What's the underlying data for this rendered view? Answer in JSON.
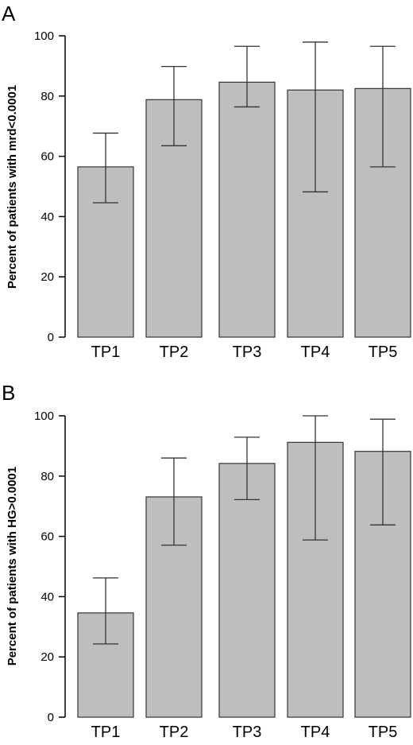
{
  "chart_data": [
    {
      "panel": "A",
      "type": "bar",
      "categories": [
        "TP1",
        "TP2",
        "TP3",
        "TP4",
        "TP5"
      ],
      "values": [
        56.5,
        78.8,
        84.6,
        82.0,
        82.5
      ],
      "error_low": [
        44.6,
        63.5,
        76.4,
        48.2,
        56.5
      ],
      "error_high": [
        67.7,
        89.8,
        96.5,
        97.9,
        96.5
      ],
      "ylabel": "Percent of patients with mrd<0.0001",
      "ylim": [
        0,
        100
      ],
      "yticks": [
        0,
        20,
        40,
        60,
        80,
        100
      ],
      "grid": false,
      "bar_color": "#bebebe"
    },
    {
      "panel": "B",
      "type": "bar",
      "categories": [
        "TP1",
        "TP2",
        "TP3",
        "TP4",
        "TP5"
      ],
      "values": [
        34.6,
        73.1,
        84.2,
        91.2,
        88.2
      ],
      "error_low": [
        24.3,
        57.1,
        72.2,
        58.8,
        63.8
      ],
      "error_high": [
        46.2,
        86.0,
        92.9,
        100.0,
        98.9
      ],
      "ylabel": "Percent of patients with HG>0.0001",
      "ylim": [
        0,
        100
      ],
      "yticks": [
        0,
        20,
        40,
        60,
        80,
        100
      ],
      "grid": false,
      "bar_color": "#bebebe"
    }
  ]
}
